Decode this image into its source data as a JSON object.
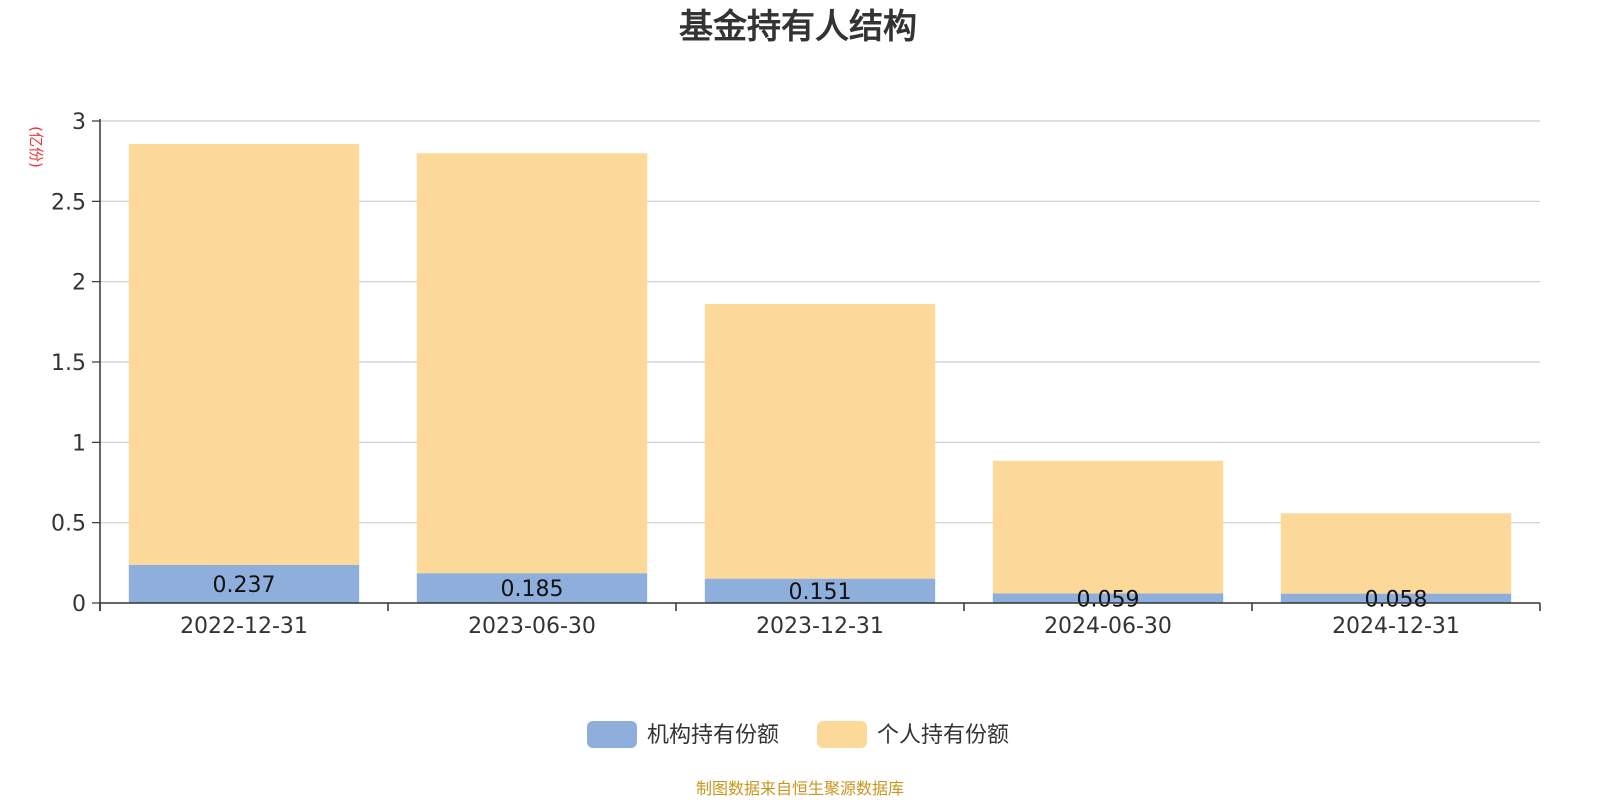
{
  "colors": {
    "institution": "#8eaedb",
    "individual": "#fdd999",
    "ylabel": "#e8373a",
    "source": "#c8961e",
    "grid": "#cccccc",
    "axis": "#333333"
  },
  "source_note": "制图数据来自恒生聚源数据库",
  "chart_data": {
    "type": "bar",
    "stacked": true,
    "title": "基金持有人结构",
    "ylabel": "(亿份)",
    "xlabel": "",
    "ylim": [
      0,
      3
    ],
    "yticks": [
      "0",
      "0.5",
      "1",
      "1.5",
      "2",
      "2.5",
      "3"
    ],
    "grid": true,
    "legend_position": "bottom",
    "categories": [
      "2022-12-31",
      "2023-06-30",
      "2023-12-31",
      "2024-06-30",
      "2024-12-31"
    ],
    "series": [
      {
        "name": "机构持有份额",
        "values": [
          0.237,
          0.185,
          0.151,
          0.059,
          0.058
        ],
        "labels": [
          "0.237",
          "0.185",
          "0.151",
          "0.059",
          "0.058"
        ]
      },
      {
        "name": "个人持有份额",
        "values": [
          2.62,
          2.614,
          1.71,
          0.826,
          0.5
        ]
      }
    ]
  }
}
